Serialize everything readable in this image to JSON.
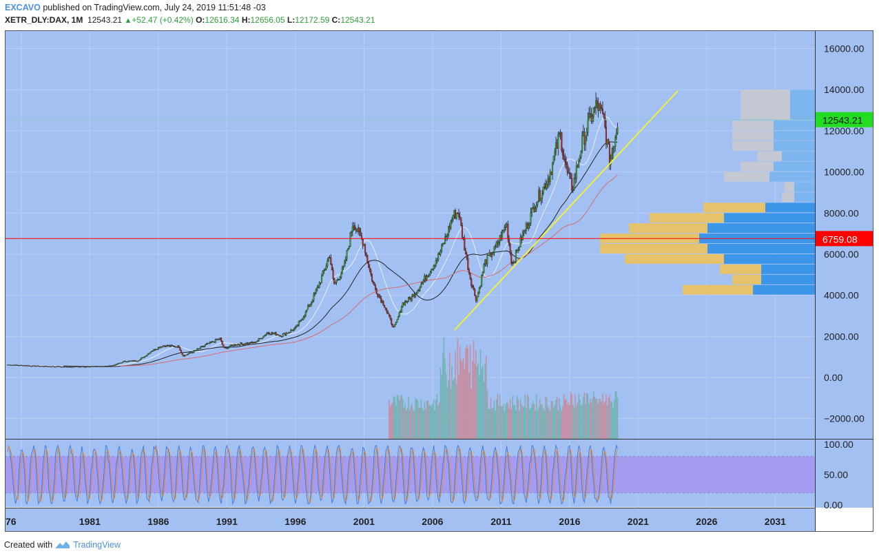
{
  "header": {
    "user": "EXCAVO",
    "published": "published on TradingView.com, July 24, 2019 11:51:48 -03",
    "symbol": "XETR_DLY:DAX, 1M",
    "last": "12543.21",
    "change": "+52.47 (+0.42%)",
    "o_label": "O:",
    "o": "12616.34",
    "h_label": "H:",
    "h": "12656.05",
    "l_label": "L:",
    "l": "12172.59",
    "c_label": "C:",
    "c": "12543.21"
  },
  "footer": {
    "created": "Created with",
    "brand": "TradingView"
  },
  "colors": {
    "background": "#a3c0f3",
    "up": "#3fa040",
    "down": "#a83232",
    "trendline": "#f2ef3c",
    "support": "#ff0000",
    "current": "#57f24a"
  },
  "chart_data": [
    {
      "type": "candlestick",
      "symbol": "XETR_DLY:DAX",
      "interval": "1M",
      "yaxis": {
        "ticks": [
          "16000.00",
          "14000.00",
          "12000.00",
          "10000.00",
          "8000.00",
          "6000.00",
          "4000.00",
          "2000.00",
          "0.00",
          "−2000.00"
        ],
        "ylim": [
          -3000,
          16800
        ]
      },
      "xaxis": {
        "ticks": [
          "76",
          "1981",
          "1986",
          "1991",
          "1996",
          "2001",
          "2006",
          "2011",
          "2016",
          "2021",
          "2026",
          "2031"
        ],
        "xlim": [
          1974.8,
          2035.2
        ]
      },
      "price_markers": [
        {
          "label": "12543.21",
          "value": 12543.21,
          "color": "#22dd22"
        },
        {
          "label": "6759.08",
          "value": 6759.08,
          "color": "#ff0000"
        }
      ],
      "price_path": [
        [
          1975.0,
          620
        ],
        [
          1977.0,
          560
        ],
        [
          1979.0,
          520
        ],
        [
          1981.0,
          530
        ],
        [
          1982.5,
          560
        ],
        [
          1983.5,
          780
        ],
        [
          1984.5,
          820
        ],
        [
          1985.5,
          1300
        ],
        [
          1986.3,
          1550
        ],
        [
          1987.5,
          1500
        ],
        [
          1987.8,
          1050
        ],
        [
          1988.5,
          1250
        ],
        [
          1989.5,
          1600
        ],
        [
          1990.5,
          1900
        ],
        [
          1990.8,
          1400
        ],
        [
          1991.5,
          1600
        ],
        [
          1993.0,
          1700
        ],
        [
          1994.0,
          2200
        ],
        [
          1995.0,
          2050
        ],
        [
          1996.0,
          2400
        ],
        [
          1997.0,
          3500
        ],
        [
          1998.5,
          6000
        ],
        [
          1998.8,
          4500
        ],
        [
          1999.5,
          5300
        ],
        [
          2000.2,
          7600
        ],
        [
          2001.0,
          6500
        ],
        [
          2001.7,
          4500
        ],
        [
          2002.5,
          3500
        ],
        [
          2003.2,
          2400
        ],
        [
          2003.8,
          3600
        ],
        [
          2004.5,
          3900
        ],
        [
          2005.5,
          4900
        ],
        [
          2006.5,
          6000
        ],
        [
          2007.5,
          7900
        ],
        [
          2007.9,
          8050
        ],
        [
          2008.3,
          6500
        ],
        [
          2008.8,
          4700
        ],
        [
          2009.2,
          3800
        ],
        [
          2009.8,
          5600
        ],
        [
          2010.5,
          6200
        ],
        [
          2011.4,
          7500
        ],
        [
          2011.8,
          5500
        ],
        [
          2012.5,
          6800
        ],
        [
          2013.5,
          8500
        ],
        [
          2014.5,
          9800
        ],
        [
          2015.3,
          11900
        ],
        [
          2015.8,
          10000
        ],
        [
          2016.2,
          9200
        ],
        [
          2016.9,
          11400
        ],
        [
          2017.5,
          12600
        ],
        [
          2018.0,
          13300
        ],
        [
          2018.5,
          12500
        ],
        [
          2018.95,
          10500
        ],
        [
          2019.3,
          11700
        ],
        [
          2019.55,
          12543
        ]
      ],
      "volume_profile": [
        {
          "low": 12500,
          "high": 14000,
          "up": 0.3,
          "down": 0.6
        },
        {
          "low": 12000,
          "high": 12500,
          "up": 0.5,
          "down": 0.5
        },
        {
          "low": 11500,
          "high": 12000,
          "up": 0.5,
          "down": 0.5
        },
        {
          "low": 11000,
          "high": 11500,
          "up": 0.5,
          "down": 0.5
        },
        {
          "low": 10500,
          "high": 11000,
          "up": 0.4,
          "down": 0.3
        },
        {
          "low": 10000,
          "high": 10500,
          "up": 0.5,
          "down": 0.4
        },
        {
          "low": 9500,
          "high": 10000,
          "up": 0.55,
          "down": 0.55
        },
        {
          "low": 9000,
          "high": 9500,
          "up": 0.25,
          "down": 0.12
        },
        {
          "low": 8500,
          "high": 9000,
          "up": 0.25,
          "down": 0.15
        },
        {
          "low": 8000,
          "high": 8500,
          "up": 0.6,
          "down": 0.75
        },
        {
          "low": 7500,
          "high": 8000,
          "up": 1.1,
          "down": 0.9
        },
        {
          "low": 7000,
          "high": 7500,
          "up": 1.3,
          "down": 0.95
        },
        {
          "low": 6500,
          "high": 7000,
          "up": 1.4,
          "down": 1.2
        },
        {
          "low": 6000,
          "high": 6500,
          "up": 1.3,
          "down": 1.3
        },
        {
          "low": 5500,
          "high": 6000,
          "up": 1.1,
          "down": 1.2
        },
        {
          "low": 5000,
          "high": 5500,
          "up": 0.65,
          "down": 0.5
        },
        {
          "low": 4500,
          "high": 5000,
          "up": 0.65,
          "down": 0.35
        },
        {
          "low": 4000,
          "high": 4500,
          "up": 0.75,
          "down": 0.85
        }
      ],
      "indicators": [
        "moving averages (3)",
        "volume",
        "stochastic oscillator"
      ],
      "oscillator": {
        "ticks": [
          "100.00",
          "50.00",
          "0.00"
        ],
        "band": [
          20,
          80
        ],
        "range": [
          0,
          100
        ]
      }
    }
  ]
}
